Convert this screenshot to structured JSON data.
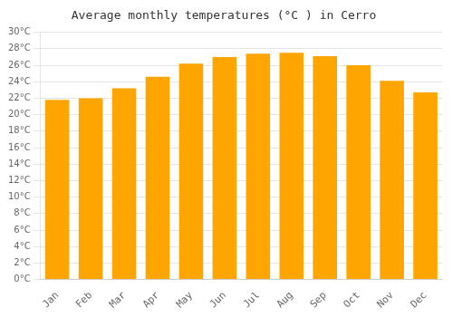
{
  "chart_data": {
    "type": "bar",
    "title": "Average monthly temperatures (°C ) in Cerro",
    "categories": [
      "Jan",
      "Feb",
      "Mar",
      "Apr",
      "May",
      "Jun",
      "Jul",
      "Aug",
      "Sep",
      "Oct",
      "Nov",
      "Dec"
    ],
    "values": [
      21.8,
      22.0,
      23.2,
      24.6,
      26.2,
      27.0,
      27.4,
      27.5,
      27.1,
      26.0,
      24.1,
      22.7
    ],
    "color": "#FFA500",
    "ylim": [
      0,
      30
    ],
    "yticks": [
      {
        "value": 0,
        "label": "0°C"
      },
      {
        "value": 2,
        "label": "2°C"
      },
      {
        "value": 4,
        "label": "4°C"
      },
      {
        "value": 6,
        "label": "6°C"
      },
      {
        "value": 8,
        "label": "8°C"
      },
      {
        "value": 10,
        "label": "10°C"
      },
      {
        "value": 12,
        "label": "12°C"
      },
      {
        "value": 14,
        "label": "14°C"
      },
      {
        "value": 16,
        "label": "16°C"
      },
      {
        "value": 18,
        "label": "18°C"
      },
      {
        "value": 20,
        "label": "20°C"
      },
      {
        "value": 22,
        "label": "22°C"
      },
      {
        "value": 24,
        "label": "24°C"
      },
      {
        "value": 26,
        "label": "26°C"
      },
      {
        "value": 28,
        "label": "28°C"
      },
      {
        "value": 30,
        "label": "30°C"
      }
    ],
    "grid": true
  }
}
